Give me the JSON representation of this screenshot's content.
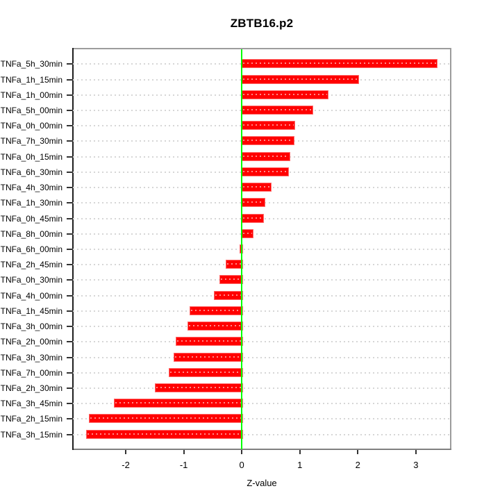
{
  "chart_data": {
    "type": "bar",
    "orientation": "horizontal",
    "title": "ZBTB16.p2",
    "xlabel": "Z-value",
    "ylabel": "",
    "categories": [
      "TNFa_5h_30min",
      "TNFa_1h_15min",
      "TNFa_1h_00min",
      "TNFa_5h_00min",
      "TNFa_0h_00min",
      "TNFa_7h_30min",
      "TNFa_0h_15min",
      "TNFa_6h_30min",
      "TNFa_4h_30min",
      "TNFa_1h_30min",
      "TNFa_0h_45min",
      "TNFa_8h_00min",
      "TNFa_6h_00min",
      "TNFa_2h_45min",
      "TNFa_0h_30min",
      "TNFa_4h_00min",
      "TNFa_1h_45min",
      "TNFa_3h_00min",
      "TNFa_2h_00min",
      "TNFa_3h_30min",
      "TNFa_7h_00min",
      "TNFa_2h_30min",
      "TNFa_3h_45min",
      "TNFa_2h_15min",
      "TNFa_3h_15min"
    ],
    "values": [
      3.35,
      2.0,
      1.47,
      1.21,
      0.89,
      0.88,
      0.81,
      0.79,
      0.49,
      0.38,
      0.36,
      0.18,
      -0.04,
      -0.28,
      -0.39,
      -0.48,
      -0.9,
      -0.93,
      -1.14,
      -1.17,
      -1.26,
      -1.5,
      -2.2,
      -2.64,
      -2.68
    ],
    "x_ticks": [
      -2,
      -1,
      0,
      1,
      2,
      3
    ],
    "xlim": [
      -2.91,
      3.6
    ],
    "grid": {
      "axis": "y",
      "style": "dotted",
      "color": "#d6d6d6"
    },
    "colors": {
      "bar_fill": "#ff0000",
      "bar_edge": "#ff6b6b",
      "zero_line": "#00ff00",
      "box_edge": "#9c9c9c",
      "axis_left": "#1f1f1f"
    }
  }
}
